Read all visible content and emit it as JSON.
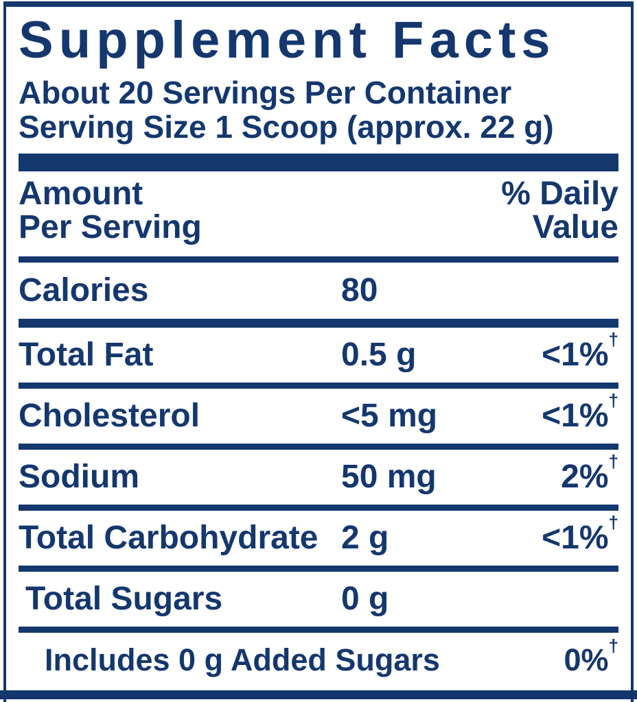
{
  "colors": {
    "navy": "#14376E",
    "background": "#FFFFFF"
  },
  "title": "Supplement Facts",
  "serving_info": {
    "servings_per_container": "About 20 Servings Per Container",
    "serving_size": "Serving Size 1 Scoop (approx. 22 g)"
  },
  "columns": {
    "amount_line1": "Amount",
    "amount_line2": "Per Serving",
    "dv_line1": "% Daily",
    "dv_line2": "Value"
  },
  "rows": [
    {
      "name": "Calories",
      "amount": "80"
    },
    {
      "name": "Total Fat",
      "amount": "0.5 g",
      "dv": "<1%",
      "dagger": "†"
    },
    {
      "name": "Cholesterol",
      "amount": "<5 mg",
      "dv": "<1%",
      "dagger": "†"
    },
    {
      "name": "Sodium",
      "amount": "50 mg",
      "dv": "2%",
      "dagger": "†"
    },
    {
      "name": "Total Carbohydrate",
      "amount": "2 g",
      "dv": "<1%",
      "dagger": "†"
    },
    {
      "name": "Total Sugars",
      "amount": "0 g"
    },
    {
      "name": "Includes 0 g Added Sugars",
      "dv": "0%",
      "dagger": "†"
    }
  ]
}
